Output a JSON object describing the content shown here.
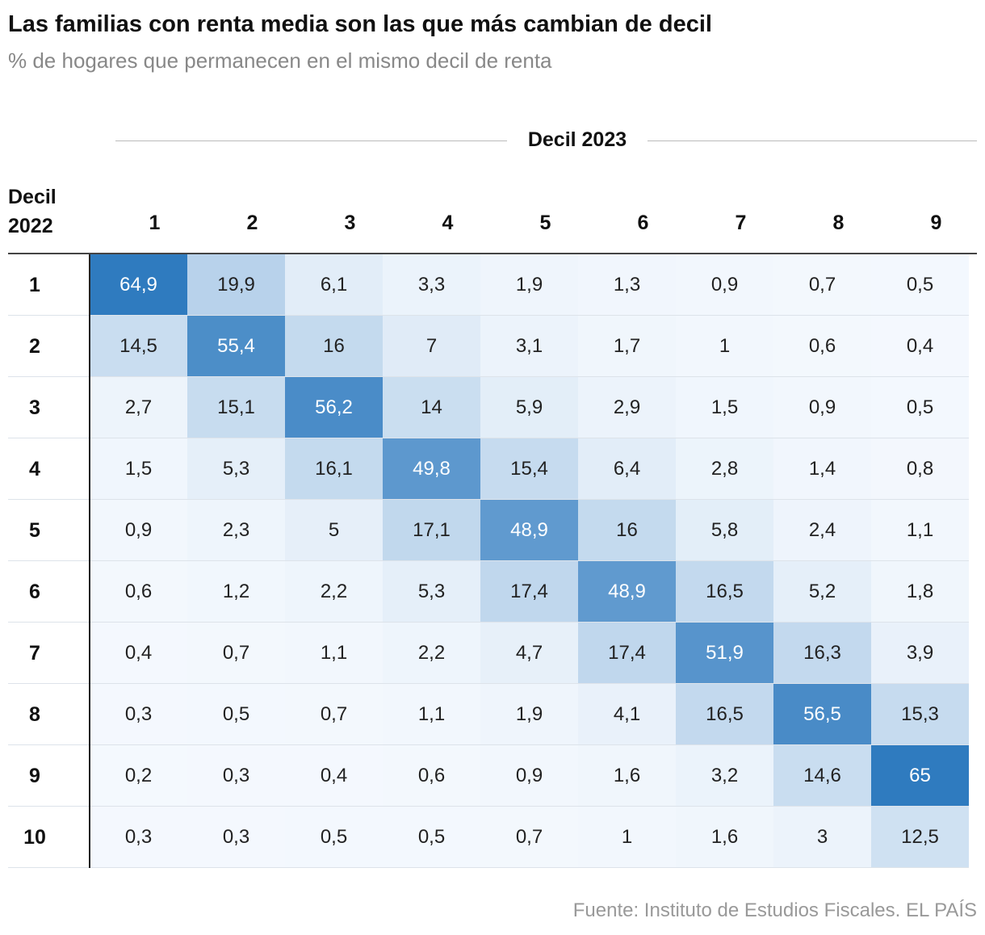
{
  "chart_data": {
    "type": "heatmap",
    "title": "Las familias con renta media son las que más cambian de decil",
    "subtitle": "% de hogares que permanecen en el mismo decil de renta",
    "x_label": "Decil 2023",
    "y_label": "Decil 2022",
    "x": [
      "1",
      "2",
      "3",
      "4",
      "5",
      "6",
      "7",
      "8",
      "9"
    ],
    "y": [
      "1",
      "2",
      "3",
      "4",
      "5",
      "6",
      "7",
      "8",
      "9",
      "10"
    ],
    "values": [
      [
        64.9,
        19.9,
        6.1,
        3.3,
        1.9,
        1.3,
        0.9,
        0.7,
        0.5
      ],
      [
        14.5,
        55.4,
        16,
        7,
        3.1,
        1.7,
        1,
        0.6,
        0.4
      ],
      [
        2.7,
        15.1,
        56.2,
        14,
        5.9,
        2.9,
        1.5,
        0.9,
        0.5
      ],
      [
        1.5,
        5.3,
        16.1,
        49.8,
        15.4,
        6.4,
        2.8,
        1.4,
        0.8
      ],
      [
        0.9,
        2.3,
        5,
        17.1,
        48.9,
        16,
        5.8,
        2.4,
        1.1
      ],
      [
        0.6,
        1.2,
        2.2,
        5.3,
        17.4,
        48.9,
        16.5,
        5.2,
        1.8
      ],
      [
        0.4,
        0.7,
        1.1,
        2.2,
        4.7,
        17.4,
        51.9,
        16.3,
        3.9
      ],
      [
        0.3,
        0.5,
        0.7,
        1.1,
        1.9,
        4.1,
        16.5,
        56.5,
        15.3
      ],
      [
        0.2,
        0.3,
        0.4,
        0.6,
        0.9,
        1.6,
        3.2,
        14.6,
        65
      ],
      [
        0.3,
        0.3,
        0.5,
        0.5,
        0.7,
        1,
        1.6,
        3,
        12.5
      ]
    ],
    "value_labels": [
      [
        "64,9",
        "19,9",
        "6,1",
        "3,3",
        "1,9",
        "1,3",
        "0,9",
        "0,7",
        "0,5"
      ],
      [
        "14,5",
        "55,4",
        "16",
        "7",
        "3,1",
        "1,7",
        "1",
        "0,6",
        "0,4"
      ],
      [
        "2,7",
        "15,1",
        "56,2",
        "14",
        "5,9",
        "2,9",
        "1,5",
        "0,9",
        "0,5"
      ],
      [
        "1,5",
        "5,3",
        "16,1",
        "49,8",
        "15,4",
        "6,4",
        "2,8",
        "1,4",
        "0,8"
      ],
      [
        "0,9",
        "2,3",
        "5",
        "17,1",
        "48,9",
        "16",
        "5,8",
        "2,4",
        "1,1"
      ],
      [
        "0,6",
        "1,2",
        "2,2",
        "5,3",
        "17,4",
        "48,9",
        "16,5",
        "5,2",
        "1,8"
      ],
      [
        "0,4",
        "0,7",
        "1,1",
        "2,2",
        "4,7",
        "17,4",
        "51,9",
        "16,3",
        "3,9"
      ],
      [
        "0,3",
        "0,5",
        "0,7",
        "1,1",
        "1,9",
        "4,1",
        "16,5",
        "56,5",
        "15,3"
      ],
      [
        "0,2",
        "0,3",
        "0,4",
        "0,6",
        "0,9",
        "1,6",
        "3,2",
        "14,6",
        "65"
      ],
      [
        "0,3",
        "0,3",
        "0,5",
        "0,5",
        "0,7",
        "1",
        "1,6",
        "3",
        "12,5"
      ]
    ],
    "color_range": [
      "#f5f9fe",
      "#2f7bbf"
    ],
    "source": "Fuente: Instituto de Estudios Fiscales. EL PAÍS"
  }
}
